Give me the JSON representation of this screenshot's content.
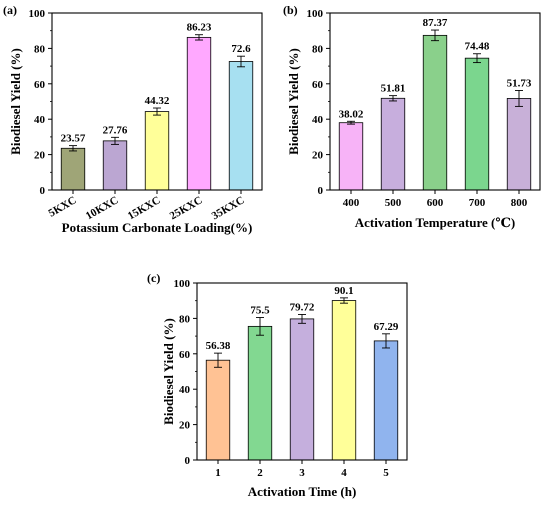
{
  "chart_data": [
    {
      "type": "bar",
      "panel_label": "(a)",
      "categories": [
        "5KXC",
        "10KXC",
        "15KXC",
        "25KXC",
        "35KXC"
      ],
      "values": [
        23.57,
        27.76,
        44.32,
        86.23,
        72.6
      ],
      "value_labels": [
        "23.57",
        "27.76",
        "44.32",
        "86.23",
        "72.6"
      ],
      "errors": [
        1.5,
        2.0,
        2.0,
        1.5,
        3.0
      ],
      "bar_colors": [
        "#9fa577",
        "#bba6d2",
        "#ffff99",
        "#ffa8ff",
        "#a7e0f1"
      ],
      "xlabel": "Potassium Carbonate Loading(%)",
      "ylabel": "Biodiesel Yield (%)",
      "ylim": [
        0,
        100
      ],
      "yticks": [
        0,
        20,
        40,
        60,
        80,
        100
      ],
      "xtick_rotation": "rotated -30°"
    },
    {
      "type": "bar",
      "panel_label": "(b)",
      "categories": [
        "400",
        "500",
        "600",
        "700",
        "800"
      ],
      "values": [
        38.02,
        51.81,
        87.37,
        74.48,
        51.73
      ],
      "value_labels": [
        "38.02",
        "51.81",
        "87.37",
        "74.48",
        "51.73"
      ],
      "errors": [
        0.8,
        1.5,
        3.0,
        2.5,
        4.5
      ],
      "bar_colors": [
        "#f7b3f7",
        "#c7aedd",
        "#8ad08b",
        "#7bd68e",
        "#c8b0d8"
      ],
      "xlabel": "Activation Temperature (℃)",
      "ylabel": "Biodiesel Yield (%)",
      "ylim": [
        0,
        100
      ],
      "yticks": [
        0,
        20,
        40,
        60,
        80,
        100
      ]
    },
    {
      "type": "bar",
      "panel_label": "(c)",
      "categories": [
        "1",
        "2",
        "3",
        "4",
        "5"
      ],
      "values": [
        56.38,
        75.5,
        79.72,
        90.1,
        67.29
      ],
      "value_labels": [
        "56.38",
        "75.5",
        "79.72",
        "90.1",
        "67.29"
      ],
      "errors": [
        4.0,
        5.0,
        2.5,
        1.5,
        4.0
      ],
      "bar_colors": [
        "#ffc294",
        "#82d891",
        "#c5afdd",
        "#ffff99",
        "#90b4ee"
      ],
      "xlabel": "Activation Time (h)",
      "ylabel": "Biodiesel Yield (%)",
      "ylim": [
        0,
        100
      ],
      "yticks": [
        0,
        20,
        40,
        60,
        80,
        100
      ]
    }
  ]
}
